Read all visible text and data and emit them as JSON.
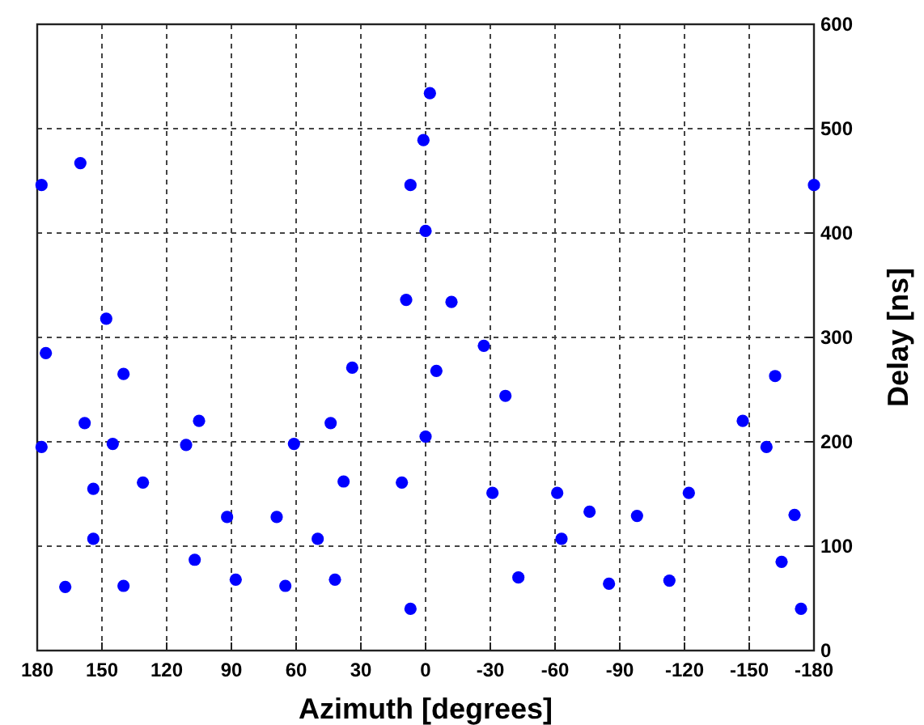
{
  "chart_data": {
    "type": "scatter",
    "xlabel": "Azimuth [degrees]",
    "ylabel": "Delay [ns]",
    "xlim": [
      180,
      -180
    ],
    "xticks": [
      180,
      150,
      120,
      90,
      60,
      30,
      0,
      -30,
      -60,
      -90,
      -120,
      -150,
      -180
    ],
    "ylim": [
      0,
      600
    ],
    "yticks": [
      0,
      100,
      200,
      300,
      400,
      500,
      600
    ],
    "grid": true,
    "marker": "circle",
    "series": [
      {
        "color": "#0000ff",
        "x": [
          178,
          176,
          178,
          160,
          148,
          140,
          158,
          145,
          154,
          131,
          154,
          167,
          140,
          105,
          111,
          107,
          92,
          88,
          69,
          65,
          61,
          44,
          34,
          38,
          50,
          42,
          11,
          7,
          9,
          7,
          1,
          0,
          -2,
          0,
          -5,
          -12,
          -27,
          -37,
          -31,
          -61,
          -63,
          -43,
          -76,
          -85,
          -98,
          -113,
          -122,
          -147,
          -158,
          -162,
          -171,
          -165,
          -174,
          -180
        ],
        "values": [
          446,
          285,
          195,
          467,
          318,
          265,
          218,
          198,
          155,
          161,
          107,
          61,
          62,
          220,
          197,
          87,
          128,
          68,
          128,
          62,
          198,
          218,
          271,
          162,
          107,
          68,
          161,
          40,
          336,
          446,
          489,
          402,
          534,
          205,
          268,
          334,
          292,
          244,
          151,
          151,
          107,
          70,
          133,
          64,
          129,
          67,
          151,
          220,
          195,
          263,
          130,
          85,
          40,
          446
        ]
      }
    ]
  }
}
